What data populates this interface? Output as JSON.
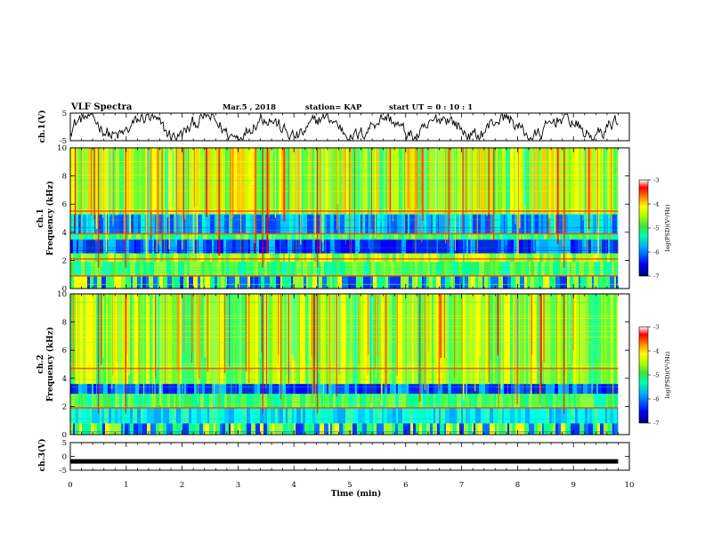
{
  "header": {
    "title": "VLF Spectra",
    "date": "Mar.5  , 2018",
    "station": "station= KAP",
    "start_ut": "start  UT  =   0 : 10 : 1"
  },
  "chart_data": [
    {
      "type": "line",
      "id": "ch1-waveform",
      "ylabel": "ch.1(V)",
      "ylim": [
        -5,
        5
      ],
      "yticks": [
        "5",
        "-5"
      ],
      "xlim": [
        0,
        10
      ],
      "x_end": 9.8
    },
    {
      "type": "heatmap",
      "id": "ch1-spectrogram",
      "ylabel_lines": [
        "ch.1",
        "Frequency  (kHz)"
      ],
      "ylim": [
        0,
        10
      ],
      "yticks": [
        "0",
        "2",
        "4",
        "6",
        "8",
        "10"
      ],
      "xlim": [
        0,
        10
      ],
      "x_end": 9.8,
      "bands_khz": [
        {
          "from": 0.0,
          "to": 0.9,
          "level": "mixed"
        },
        {
          "from": 0.9,
          "to": 1.9,
          "level": "green"
        },
        {
          "from": 1.9,
          "to": 2.5,
          "level": "green-yellow"
        },
        {
          "from": 2.5,
          "to": 3.5,
          "level": "blue"
        },
        {
          "from": 3.5,
          "to": 3.9,
          "level": "green"
        },
        {
          "from": 3.9,
          "to": 5.3,
          "level": "cyan-blue"
        },
        {
          "from": 5.3,
          "to": 10.0,
          "level": "yellow-green"
        }
      ],
      "lines_khz": [
        5.5,
        3.9,
        2.1,
        0.9
      ],
      "colorbar": {
        "label": "log(PSD)(V²/Hz)",
        "min": -7,
        "max": -3,
        "ticks": [
          "-3",
          "-4",
          "-5",
          "-6",
          "-7"
        ]
      }
    },
    {
      "type": "heatmap",
      "id": "ch2-spectrogram",
      "ylabel_lines": [
        "ch.2",
        "Frequency  (kHz)"
      ],
      "ylim": [
        0,
        10
      ],
      "yticks": [
        "0",
        "2",
        "4",
        "6",
        "8",
        "10"
      ],
      "xlim": [
        0,
        10
      ],
      "x_end": 9.8,
      "bands_khz": [
        {
          "from": 0.0,
          "to": 0.8,
          "level": "mixed"
        },
        {
          "from": 0.8,
          "to": 1.9,
          "level": "cyan"
        },
        {
          "from": 1.9,
          "to": 2.9,
          "level": "green"
        },
        {
          "from": 2.9,
          "to": 3.6,
          "level": "blue"
        },
        {
          "from": 3.6,
          "to": 10.0,
          "level": "green-yellow"
        }
      ],
      "lines_khz": [
        4.7,
        1.9
      ],
      "colorbar": {
        "label": "log(PSD)(V²/Hz)",
        "min": -7,
        "max": -3,
        "ticks": [
          "-3",
          "-4",
          "-5",
          "-6",
          "-7"
        ]
      }
    },
    {
      "type": "line",
      "id": "ch3-waveform",
      "ylabel": "ch.3(V)",
      "ylim": [
        -5,
        5
      ],
      "yticks": [
        "5",
        "0",
        "-5"
      ],
      "xlim": [
        0,
        10
      ],
      "x_end": 9.8,
      "constant_value": -1.8
    }
  ],
  "x_axis": {
    "label": "Time  (min)",
    "ticks": [
      "0",
      "1",
      "2",
      "3",
      "4",
      "5",
      "6",
      "7",
      "8",
      "9",
      "10"
    ]
  },
  "colors": {
    "colormap": [
      "#000070",
      "#0000ff",
      "#00aaff",
      "#00ffaa",
      "#40e040",
      "#aaff00",
      "#ffff00",
      "#ff8800",
      "#ff0000",
      "#ffffff"
    ]
  }
}
